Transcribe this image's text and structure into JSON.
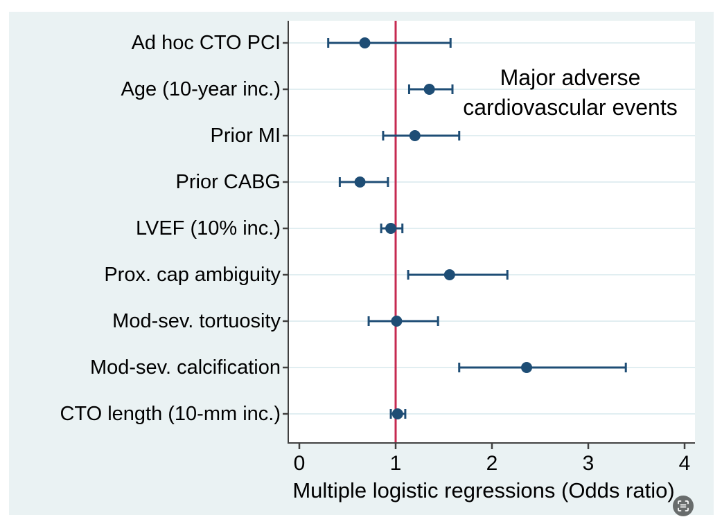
{
  "chart_data": {
    "type": "scatter",
    "subtype": "forest-plot-with-error-bars",
    "title": "Major adverse cardiovascular events",
    "title_lines": [
      "Major adverse",
      "cardiovascular events"
    ],
    "xlabel": "Multiple logistic regressions (Odds ratio)",
    "ylabel": "",
    "x_ticks": [
      "0",
      "1",
      "2",
      "3",
      "4"
    ],
    "x_tick_values": [
      0,
      1,
      2,
      3,
      4
    ],
    "xlim": [
      -0.12,
      4.11
    ],
    "reference_line_x": 1,
    "grid": "horizontal",
    "legend": "none",
    "categories": [
      "Ad hoc CTO PCI",
      "Age (10-year inc.)",
      "Prior MI",
      "Prior CABG",
      "LVEF (10% inc.)",
      "Prox. cap ambiguity",
      "Mod-sev. tortuosity",
      "Mod-sev. calcification",
      "CTO length (10-mm inc.)"
    ],
    "points": [
      {
        "label": "Ad hoc CTO PCI",
        "or": 0.68,
        "ci_low": 0.3,
        "ci_high": 1.57
      },
      {
        "label": "Age (10-year inc.)",
        "or": 1.35,
        "ci_low": 1.14,
        "ci_high": 1.59
      },
      {
        "label": "Prior MI",
        "or": 1.2,
        "ci_low": 0.87,
        "ci_high": 1.66
      },
      {
        "label": "Prior CABG",
        "or": 0.63,
        "ci_low": 0.42,
        "ci_high": 0.92
      },
      {
        "label": "LVEF (10% inc.)",
        "or": 0.95,
        "ci_low": 0.85,
        "ci_high": 1.07
      },
      {
        "label": "Prox. cap ambiguity",
        "or": 1.56,
        "ci_low": 1.13,
        "ci_high": 2.16
      },
      {
        "label": "Mod-sev. tortuosity",
        "or": 1.01,
        "ci_low": 0.72,
        "ci_high": 1.44
      },
      {
        "label": "Mod-sev. calcification",
        "or": 2.36,
        "ci_low": 1.66,
        "ci_high": 3.39
      },
      {
        "label": "CTO length (10-mm inc.)",
        "or": 1.02,
        "ci_low": 0.95,
        "ci_high": 1.1
      }
    ]
  },
  "colors": {
    "page_bg": "#ffffff",
    "canvas_bg": "#eaf2f3",
    "plot_bg": "#ffffff",
    "gridline": "#e1eef1",
    "axis": "#404040",
    "marker": "#1e4d75",
    "reference_line": "#c62a50",
    "text": "#000000",
    "lens_bg": "rgba(66,70,69,0.78)",
    "lens_glyph": "#ffffff"
  },
  "icons": {
    "lens_button": "image-search-lens-icon"
  }
}
